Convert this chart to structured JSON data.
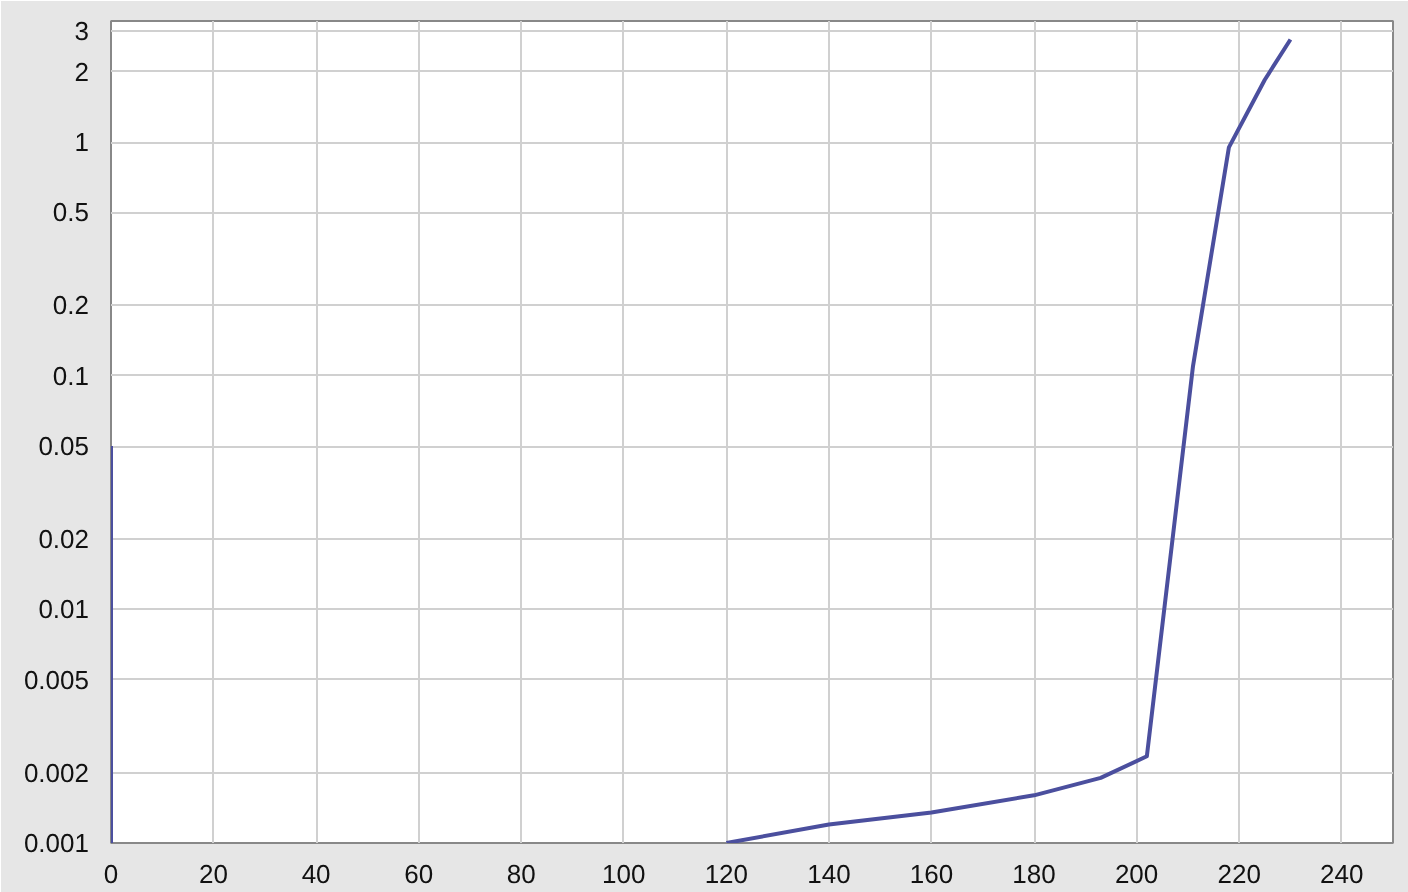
{
  "chart_data": {
    "type": "line",
    "log": "y",
    "grid": true,
    "marker": "none",
    "line_style": "solid",
    "x": [
      0,
      0,
      null,
      120,
      140,
      160,
      180,
      193,
      202,
      211,
      218,
      225,
      230
    ],
    "series": [
      {
        "color": "#4b4f9e",
        "values": [
          0.05,
          0.001,
          null,
          0.001,
          0.0012,
          0.00135,
          0.0016,
          0.0019,
          0.00235,
          0.11,
          0.95,
          1.85,
          2.75
        ]
      }
    ],
    "xlim": [
      0,
      250
    ],
    "xticks": [
      0,
      20,
      40,
      60,
      80,
      100,
      120,
      140,
      160,
      180,
      200,
      220,
      240
    ],
    "ylim": [
      0.001,
      3.3
    ],
    "yticks": [
      0.001,
      0.002,
      0.005,
      0.01,
      0.02,
      0.05,
      0.1,
      0.2,
      0.5,
      1,
      2,
      3
    ]
  }
}
